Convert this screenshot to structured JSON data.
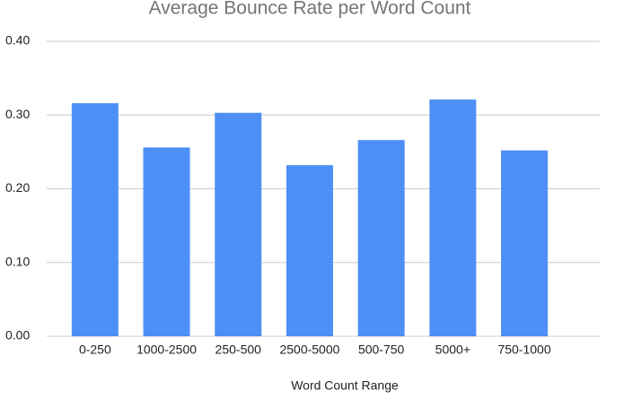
{
  "chart_data": {
    "type": "bar",
    "title": "Average Bounce Rate per Word Count",
    "x_label": "Word Count Range",
    "categories": [
      "0-250",
      "1000-2500",
      "250-500",
      "2500-5000",
      "500-750",
      "5000+",
      "750-1000"
    ],
    "values": [
      0.316,
      0.256,
      0.303,
      0.232,
      0.266,
      0.321,
      0.252
    ],
    "color": "#4d8ff5",
    "ylim": [
      0,
      0.4
    ],
    "yticks": [
      {
        "value": 0,
        "label": "0.00"
      },
      {
        "value": 0.1,
        "label": "0.10"
      },
      {
        "value": 0.2,
        "label": "0.20"
      },
      {
        "value": 0.3,
        "label": "0.30"
      },
      {
        "value": 0.4,
        "label": "0.40"
      }
    ],
    "grid": true
  }
}
